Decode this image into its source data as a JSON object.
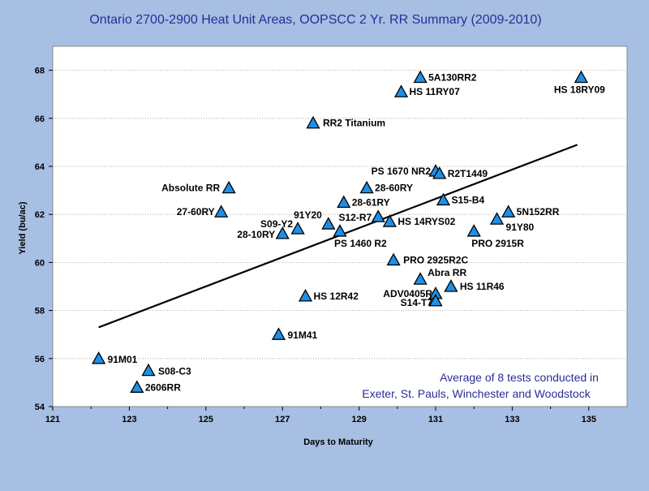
{
  "chart_data": {
    "type": "scatter",
    "title": "Ontario 2700-2900 Heat Unit Areas,  OOPSCC 2 Yr. RR Summary (2009-2010)",
    "xlabel": "Days to Maturity",
    "ylabel": "Yield (bu/ac)",
    "xlim": [
      121,
      136
    ],
    "ylim": [
      54,
      69
    ],
    "x_ticks": [
      "121",
      "123",
      "125",
      "127",
      "129",
      "131",
      "133",
      "135"
    ],
    "y_ticks": [
      "54",
      "56",
      "58",
      "60",
      "62",
      "64",
      "66",
      "68"
    ],
    "grid": "horizontal-dotted",
    "marker": "triangle",
    "marker_color": "#1f8fe6",
    "trendline": {
      "x": [
        122.2,
        134.7
      ],
      "y": [
        57.3,
        64.9
      ]
    },
    "annotation": [
      "Average of 8 tests conducted in",
      "Exeter, St. Pauls, Winchester and Woodstock"
    ],
    "points": [
      {
        "label": "5A130RR2",
        "x": 130.6,
        "y": 67.7
      },
      {
        "label": "HS 11RY07",
        "x": 130.1,
        "y": 67.1
      },
      {
        "label": "HS 18RY09",
        "x": 134.8,
        "y": 67.7
      },
      {
        "label": "RR2 Titanium",
        "x": 127.8,
        "y": 65.8
      },
      {
        "label": "PS 1670 NR2",
        "x": 131.0,
        "y": 63.8
      },
      {
        "label": "R2T1449",
        "x": 131.1,
        "y": 63.7
      },
      {
        "label": "Absolute RR",
        "x": 125.6,
        "y": 63.1
      },
      {
        "label": "28-60RY",
        "x": 129.2,
        "y": 63.1
      },
      {
        "label": "S15-B4",
        "x": 131.2,
        "y": 62.6
      },
      {
        "label": "28-61RY",
        "x": 128.6,
        "y": 62.5
      },
      {
        "label": "27-60RY",
        "x": 125.4,
        "y": 62.1
      },
      {
        "label": "5N152RR",
        "x": 132.9,
        "y": 62.1
      },
      {
        "label": "S12-R7",
        "x": 129.5,
        "y": 61.9
      },
      {
        "label": "91Y20",
        "x": 128.2,
        "y": 61.6
      },
      {
        "label": "S09-Y2",
        "x": 127.4,
        "y": 61.4
      },
      {
        "label": "HS 14RYS02",
        "x": 129.8,
        "y": 61.7
      },
      {
        "label": "91Y80",
        "x": 132.6,
        "y": 61.8
      },
      {
        "label": "28-10RY",
        "x": 127.0,
        "y": 61.2
      },
      {
        "label": "PS 1460 R2",
        "x": 128.5,
        "y": 61.3
      },
      {
        "label": "PRO 2915R",
        "x": 132.0,
        "y": 61.3
      },
      {
        "label": "PRO 2925R2C",
        "x": 129.9,
        "y": 60.1
      },
      {
        "label": "Abra RR",
        "x": 130.6,
        "y": 59.3
      },
      {
        "label": "HS 11R46",
        "x": 131.4,
        "y": 59.0
      },
      {
        "label": "ADV0405R",
        "x": 131.0,
        "y": 58.7
      },
      {
        "label": "S14-T7",
        "x": 131.0,
        "y": 58.4
      },
      {
        "label": "HS 12R42",
        "x": 127.6,
        "y": 58.6
      },
      {
        "label": "91M41",
        "x": 126.9,
        "y": 57.0
      },
      {
        "label": "91M01",
        "x": 122.2,
        "y": 56.0
      },
      {
        "label": "S08-C3",
        "x": 123.5,
        "y": 55.5
      },
      {
        "label": "2606RR",
        "x": 123.2,
        "y": 54.8
      }
    ]
  }
}
